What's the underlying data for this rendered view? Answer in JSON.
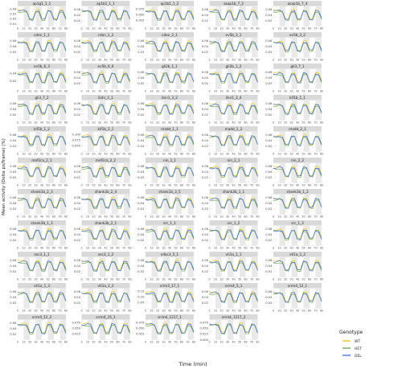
{
  "figure": {
    "x_axis_title": "Time (min)",
    "y_axis_title": "Mean activity (Delta px/frame) (%)"
  },
  "legend": {
    "title": "Genotype",
    "entries": [
      {
        "label": "WT",
        "color": "#f2c21b"
      },
      {
        "label": "HET",
        "color": "#6aa84f"
      },
      {
        "label": "DEL",
        "color": "#3b6bd6"
      }
    ]
  },
  "colors": {
    "panel_background": "#ffffff",
    "strip_background": "#d9d9d9",
    "night_shading": "#e9e9e9",
    "grid": "#efefef",
    "WT": "#f2c21b",
    "HET": "#6aa84f",
    "DEL": "#3b6bd6"
  },
  "chart_data": {
    "type": "line",
    "description_of_layout": "small multiples, 5 columns × 11 rows (last row 3 panels + legend)",
    "x": [
      0,
      5,
      10,
      15,
      20,
      25,
      30,
      35,
      40,
      45,
      50,
      55,
      60,
      65,
      70,
      75,
      80
    ],
    "x_ticks": [
      "0",
      "10",
      "20",
      "30",
      "40",
      "50",
      "60",
      "70",
      "80"
    ],
    "xlim": [
      0,
      80
    ],
    "night_periods": [
      [
        10,
        20
      ],
      [
        30,
        40
      ],
      [
        50,
        60
      ],
      [
        70,
        80
      ]
    ],
    "panels": [
      {
        "title": "ap1g1_1_1",
        "yticks": [
          "0.01",
          "0.02",
          "0.03",
          "0.04"
        ],
        "ylim": [
          0.005,
          0.045
        ]
      },
      {
        "title": "ap1b1_1_1",
        "yticks": [
          "0.02",
          "0.04",
          "0.06"
        ],
        "ylim": [
          0.0,
          0.07
        ]
      },
      {
        "title": "ap1b1_1_2",
        "yticks": [
          "0.025",
          "0.050",
          "0.075"
        ],
        "ylim": [
          0.0,
          0.085
        ]
      },
      {
        "title": "asap1b_7_2",
        "yticks": [
          "0.02",
          "0.04",
          "0.06"
        ],
        "ylim": [
          0.0,
          0.07
        ]
      },
      {
        "title": "asap1b_7_4",
        "yticks": [
          "0.02",
          "0.04",
          "0.06"
        ],
        "ylim": [
          0.0,
          0.07
        ]
      },
      {
        "title": "cdon_1_1",
        "yticks": [
          "0.02",
          "0.04",
          "0.06"
        ],
        "ylim": [
          0.0,
          0.07
        ]
      },
      {
        "title": "cdon_1_2",
        "yticks": [
          "0.02",
          "0.04",
          "0.06"
        ],
        "ylim": [
          0.0,
          0.07
        ]
      },
      {
        "title": "cdon_2_1",
        "yticks": [
          "0.02",
          "0.04",
          "0.06"
        ],
        "ylim": [
          0.0,
          0.07
        ]
      },
      {
        "title": "ev5b_3_1",
        "yticks": [
          "0.02",
          "0.04",
          "0.06"
        ],
        "ylim": [
          0.0,
          0.07
        ]
      },
      {
        "title": "ev5b_3_2",
        "yticks": [
          "0.02",
          "0.04",
          "0.06"
        ],
        "ylim": [
          0.0,
          0.07
        ]
      },
      {
        "title": "ev5b_6_3",
        "yticks": [
          "0.02",
          "0.04"
        ],
        "ylim": [
          0.0,
          0.05
        ]
      },
      {
        "title": "ev5b_6_6",
        "yticks": [
          "0.02",
          "0.04",
          "0.06"
        ],
        "ylim": [
          0.0,
          0.07
        ]
      },
      {
        "title": "gli2b_1_1",
        "yticks": [
          "0.02",
          "0.04",
          "0.06"
        ],
        "ylim": [
          0.0,
          0.07
        ]
      },
      {
        "title": "gli2b_1_2",
        "yticks": [
          "0.02",
          "0.04",
          "0.06"
        ],
        "ylim": [
          0.0,
          0.07
        ]
      },
      {
        "title": "gli3_7_1",
        "yticks": [
          "0.02",
          "0.04",
          "0.06"
        ],
        "ylim": [
          0.0,
          0.07
        ]
      },
      {
        "title": "gli3_7_2",
        "yticks": [
          "0.02",
          "0.04",
          "0.06"
        ],
        "ylim": [
          0.0,
          0.07
        ]
      },
      {
        "title": "ilahr_1_1",
        "yticks": [
          "0.02",
          "0.04",
          "0.06"
        ],
        "ylim": [
          0.0,
          0.07
        ]
      },
      {
        "title": "itsn1_3_2",
        "yticks": [
          "0.02",
          "0.04",
          "0.06"
        ],
        "ylim": [
          0.0,
          0.07
        ]
      },
      {
        "title": "itsn1_3_4",
        "yticks": [
          "0.02",
          "0.04",
          "0.06"
        ],
        "ylim": [
          0.0,
          0.07
        ]
      },
      {
        "title": "kif1b_1_1",
        "yticks": [
          "0.02",
          "0.04",
          "0.06"
        ],
        "ylim": [
          0.0,
          0.07
        ]
      },
      {
        "title": "kif1b_1_2",
        "yticks": [
          "0.02",
          "0.04",
          "0.06"
        ],
        "ylim": [
          0.0,
          0.07
        ]
      },
      {
        "title": "kif1b_2_1",
        "yticks": [
          "0.050",
          "0.075",
          "0.100"
        ],
        "ylim": [
          0.025,
          0.11
        ]
      },
      {
        "title": "madd_1_1",
        "yticks": [
          "0.02",
          "0.04",
          "0.06"
        ],
        "ylim": [
          0.0,
          0.07
        ]
      },
      {
        "title": "madd_1_2",
        "yticks": [
          "0.02",
          "0.04",
          "0.06"
        ],
        "ylim": [
          0.0,
          0.07
        ]
      },
      {
        "title": "madd_2_1",
        "yticks": [
          "0.02",
          "0.04",
          "0.06"
        ],
        "ylim": [
          0.0,
          0.07
        ]
      },
      {
        "title": "mef2ca_2_1",
        "yticks": [
          "0.02",
          "0.04",
          "0.06"
        ],
        "ylim": [
          0.0,
          0.07
        ]
      },
      {
        "title": "mef2ca_2_2",
        "yticks": [
          "0.02",
          "0.04",
          "0.06"
        ],
        "ylim": [
          0.0,
          0.07
        ]
      },
      {
        "title": "nin_1_1",
        "yticks": [
          "0.02",
          "0.04",
          "0.06"
        ],
        "ylim": [
          0.0,
          0.07
        ]
      },
      {
        "title": "nin_2_1",
        "yticks": [
          "0.02",
          "0.04",
          "0.06"
        ],
        "ylim": [
          0.0,
          0.07
        ]
      },
      {
        "title": "nin_2_2",
        "yticks": [
          "0.02",
          "0.04",
          "0.06"
        ],
        "ylim": [
          0.0,
          0.07
        ]
      },
      {
        "title": "shank3a_2_3",
        "yticks": [
          "0.02",
          "0.04",
          "0.06"
        ],
        "ylim": [
          0.0,
          0.07
        ]
      },
      {
        "title": "shank3a_2_4",
        "yticks": [
          "0.02",
          "0.04",
          "0.06"
        ],
        "ylim": [
          0.0,
          0.07
        ]
      },
      {
        "title": "shank3a_3_5",
        "yticks": [
          "0.02",
          "0.04",
          "0.06"
        ],
        "ylim": [
          0.0,
          0.07
        ]
      },
      {
        "title": "shank3b_1_1",
        "yticks": [
          "0.02",
          "0.04",
          "0.06"
        ],
        "ylim": [
          0.0,
          0.07
        ]
      },
      {
        "title": "shank3b_1_2",
        "yticks": [
          "0.02",
          "0.04",
          "0.06"
        ],
        "ylim": [
          0.0,
          0.07
        ]
      },
      {
        "title": "shank3b_1_3",
        "yticks": [
          "0.02",
          "0.04",
          "0.06"
        ],
        "ylim": [
          0.0,
          0.07
        ]
      },
      {
        "title": "shank3b_2_1",
        "yticks": [
          "0.02",
          "0.04",
          "0.06"
        ],
        "ylim": [
          0.0,
          0.07
        ]
      },
      {
        "title": "src_1_1",
        "yticks": [
          "0.02",
          "0.04",
          "0.06"
        ],
        "ylim": [
          0.0,
          0.07
        ]
      },
      {
        "title": "src_1_2",
        "yticks": [
          "0.02",
          "0.04",
          "0.06"
        ],
        "ylim": [
          0.0,
          0.07
        ]
      },
      {
        "title": "src_1_3",
        "yticks": [
          "0.02",
          "0.04",
          "0.06"
        ],
        "ylim": [
          0.0,
          0.07
        ]
      },
      {
        "title": "sec3_1_1",
        "yticks": [
          "0.02",
          "0.04",
          "0.06"
        ],
        "ylim": [
          0.0,
          0.07
        ]
      },
      {
        "title": "sec3_1_2",
        "yticks": [
          "0.02",
          "0.04",
          "0.06"
        ],
        "ylim": [
          0.0,
          0.07
        ]
      },
      {
        "title": "vdac3_5_1",
        "yticks": [
          "0.02",
          "0.04",
          "0.06"
        ],
        "ylim": [
          0.0,
          0.07
        ]
      },
      {
        "title": "vti1a_1_1",
        "yticks": [
          "0.02",
          "0.04",
          "0.06"
        ],
        "ylim": [
          0.0,
          0.07
        ]
      },
      {
        "title": "vti1a_1_2",
        "yticks": [
          "0.02",
          "0.04",
          "0.06"
        ],
        "ylim": [
          0.0,
          0.07
        ]
      },
      {
        "title": "vti1a_1_3",
        "yticks": [
          "0.02",
          "0.04",
          "0.06"
        ],
        "ylim": [
          0.0,
          0.07
        ]
      },
      {
        "title": "vti1a_2_2",
        "yticks": [
          "0.02",
          "0.04",
          "0.06"
        ],
        "ylim": [
          0.0,
          0.07
        ]
      },
      {
        "title": "srrm3_17_1",
        "yticks": [
          "0.05",
          "0.10",
          "0.15"
        ],
        "ylim": [
          0.0,
          0.17
        ]
      },
      {
        "title": "srrm4_5_1",
        "yticks": [
          "0.02",
          "0.04",
          "0.06"
        ],
        "ylim": [
          0.0,
          0.07
        ]
      },
      {
        "title": "srrm4_12_1",
        "yticks": [
          "0.02",
          "0.04",
          "0.06"
        ],
        "ylim": [
          0.0,
          0.07
        ]
      },
      {
        "title": "srrm4_12_2",
        "yticks": [
          "0.02",
          "0.04",
          "0.06"
        ],
        "ylim": [
          0.0,
          0.07
        ]
      },
      {
        "title": "srrm4_15_1",
        "yticks": [
          "0.025",
          "0.050",
          "0.075"
        ],
        "ylim": [
          0.0,
          0.085
        ]
      },
      {
        "title": "srrm4_1217_1",
        "yticks": [
          "0.025",
          "0.050",
          "0.075"
        ],
        "ylim": [
          0.0,
          0.085
        ]
      },
      {
        "title": "srrm4_1217_2",
        "yticks": [
          "0.000",
          "0.025",
          "0.050",
          "0.075"
        ],
        "ylim": [
          0.0,
          0.085
        ]
      }
    ],
    "series": [
      {
        "name": "WT",
        "values": [
          0.046,
          0.044,
          0.047,
          0.043,
          0.016,
          0.015,
          0.045,
          0.046,
          0.016,
          0.015,
          0.048,
          0.045,
          0.017,
          0.016,
          0.046,
          0.044,
          0.018
        ]
      },
      {
        "name": "HET",
        "values": [
          0.041,
          0.04,
          0.042,
          0.039,
          0.014,
          0.013,
          0.041,
          0.042,
          0.014,
          0.013,
          0.043,
          0.041,
          0.015,
          0.014,
          0.042,
          0.04,
          0.015
        ]
      },
      {
        "name": "DEL",
        "values": [
          0.043,
          0.042,
          0.045,
          0.041,
          0.015,
          0.014,
          0.042,
          0.043,
          0.015,
          0.014,
          0.044,
          0.042,
          0.016,
          0.015,
          0.043,
          0.041,
          0.016
        ]
      }
    ]
  }
}
